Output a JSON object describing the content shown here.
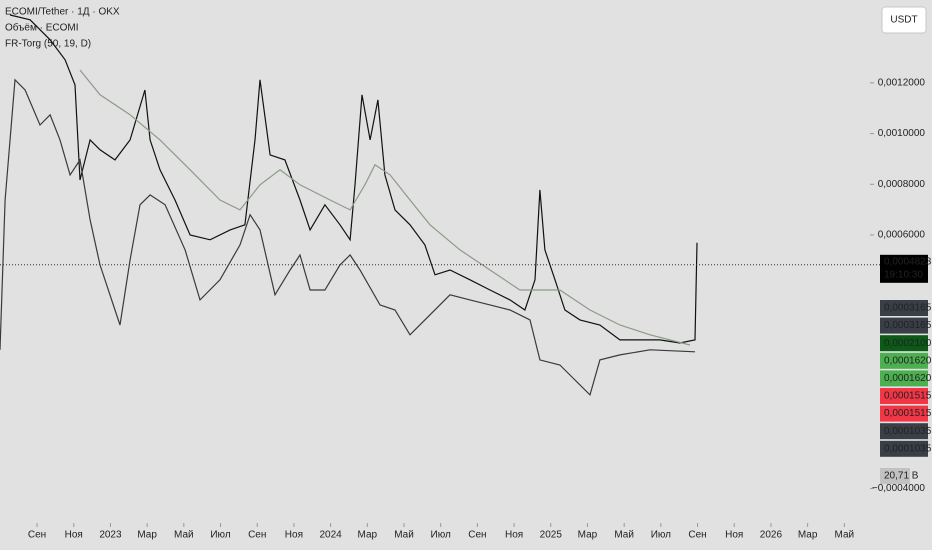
{
  "chart_data": {
    "type": "line",
    "legend": [
      "ECOMI/Tether · 1Д · OKX",
      "Объём · ECOMI",
      "FR-Torg (50, 19, D)"
    ],
    "currency_button": "USDT",
    "xlim": [
      -2.02,
      45.4
    ],
    "ylim": [
      -0.000485,
      0.001527
    ],
    "xticks": [
      {
        "value": 0,
        "label": "Сен"
      },
      {
        "value": 2,
        "label": "Ноя"
      },
      {
        "value": 4,
        "label": "2023"
      },
      {
        "value": 6,
        "label": "Мар"
      },
      {
        "value": 8,
        "label": "Май"
      },
      {
        "value": 10,
        "label": "Июл"
      },
      {
        "value": 12,
        "label": "Сен"
      },
      {
        "value": 14,
        "label": "Ноя"
      },
      {
        "value": 16,
        "label": "2024"
      },
      {
        "value": 18,
        "label": "Мар"
      },
      {
        "value": 20,
        "label": "Май"
      },
      {
        "value": 22,
        "label": "Июл"
      },
      {
        "value": 24,
        "label": "Сен"
      },
      {
        "value": 26,
        "label": "Ноя"
      },
      {
        "value": 28,
        "label": "2025"
      },
      {
        "value": 30,
        "label": "Мар"
      },
      {
        "value": 32,
        "label": "Май"
      },
      {
        "value": 34,
        "label": "Июл"
      },
      {
        "value": 36,
        "label": "Сен"
      },
      {
        "value": 38,
        "label": "Ноя"
      },
      {
        "value": 40,
        "label": "2026"
      },
      {
        "value": 42,
        "label": "Мар"
      },
      {
        "value": 44,
        "label": "Май"
      }
    ],
    "yticks": [
      {
        "value": 0.0012,
        "label": "0,0012000"
      },
      {
        "value": 0.001,
        "label": "0,0010000"
      },
      {
        "value": 0.0008,
        "label": "0,0008000"
      },
      {
        "value": 0.0006,
        "label": "0,0006000"
      },
      {
        "value": -0.0004,
        "label": "−0,0004000"
      }
    ],
    "current_price": {
      "value": 0.0004823,
      "label": "0,0004823",
      "time": "19:10:30"
    },
    "badges": [
      {
        "label": "0,0003165",
        "color": "#3a3e47"
      },
      {
        "label": "0,0003165",
        "color": "#3a3e47"
      },
      {
        "label": "0,0002100",
        "color": "#0b5a17"
      },
      {
        "label": "0,0001620",
        "color": "#4caf50"
      },
      {
        "label": "0,0001620",
        "color": "#4caf50"
      },
      {
        "label": "0,0001515",
        "color": "#f23645"
      },
      {
        "label": "0,0001515",
        "color": "#f23645"
      },
      {
        "label": "0,0001035",
        "color": "#3a3e47"
      },
      {
        "label": "0,0001035",
        "color": "#3a3e47"
      }
    ],
    "volume_badge": "20,71 B",
    "series": [
      {
        "color": "#111111",
        "x": [
          -1.47,
          -0.38,
          0.71,
          1.53,
          2.07,
          2.34,
          2.89,
          3.43,
          4.25,
          5.07,
          5.88,
          6.16,
          6.7,
          7.52,
          8.34,
          9.43,
          10.52,
          11.33,
          11.88,
          12.15,
          12.7,
          13.51,
          14.33,
          14.88,
          15.69,
          16.51,
          17.06,
          17.33,
          17.71,
          18.15,
          18.58,
          18.96,
          19.51,
          20.33,
          21.14,
          21.69,
          22.51,
          23.6,
          24.69,
          25.78,
          26.59,
          27.14,
          27.41,
          27.68,
          28.23,
          28.77,
          29.59,
          30.68,
          31.77,
          32.86,
          33.95,
          35.04,
          35.86,
          35.97
        ],
        "values": [
          0.001468,
          0.001449,
          0.00137,
          0.001291,
          0.001192,
          0.000817,
          0.000975,
          0.000936,
          0.000896,
          0.000975,
          0.001172,
          0.000975,
          0.000857,
          0.000738,
          0.0006,
          0.000581,
          0.00062,
          0.00064,
          0.000975,
          0.001212,
          0.000916,
          0.000896,
          0.000738,
          0.00062,
          0.000719,
          0.00064,
          0.000581,
          0.000798,
          0.001153,
          0.000975,
          0.001133,
          0.000837,
          0.000699,
          0.00064,
          0.000561,
          0.000443,
          0.000462,
          0.000423,
          0.000383,
          0.000344,
          0.000304,
          0.000423,
          0.000778,
          0.000541,
          0.000423,
          0.000304,
          0.000265,
          0.000245,
          0.000186,
          0.000186,
          0.000186,
          0.000174,
          0.000186,
          0.000569
        ]
      },
      {
        "color": "#8c9b88",
        "x": [
          2.34,
          3.43,
          5.07,
          6.7,
          8.34,
          9.97,
          11.06,
          12.15,
          13.24,
          14.33,
          15.97,
          17.06,
          17.87,
          18.42,
          19.24,
          20.33,
          21.42,
          23.05,
          24.69,
          26.32,
          27.68,
          28.5,
          30.14,
          31.77,
          33.41,
          35.59
        ],
        "values": [
          0.001251,
          0.001153,
          0.001074,
          0.000975,
          0.000857,
          0.000738,
          0.000699,
          0.000798,
          0.000857,
          0.000798,
          0.000738,
          0.000699,
          0.000798,
          0.000877,
          0.000837,
          0.000738,
          0.00064,
          0.000541,
          0.000462,
          0.000383,
          0.000383,
          0.000383,
          0.000304,
          0.000245,
          0.000206,
          0.000166
        ]
      },
      {
        "color": "#3a3a3a",
        "x": [
          -2.02,
          -1.74,
          -1.2,
          -0.65,
          0.16,
          0.71,
          1.25,
          1.8,
          2.34,
          2.89,
          3.43,
          4.25,
          4.52,
          5.07,
          5.61,
          6.16,
          6.98,
          8.07,
          8.88,
          9.97,
          11.06,
          11.61,
          12.15,
          12.97,
          13.79,
          14.33,
          14.88,
          15.69,
          16.51,
          17.06,
          17.6,
          18.69,
          19.51,
          20.33,
          21.42,
          22.51,
          23.6,
          24.69,
          25.78,
          26.87,
          27.41,
          28.5,
          29.32,
          30.14,
          30.68,
          31.77,
          33.41,
          35.86
        ],
        "values": [
          0.000147,
          0.000738,
          0.001212,
          0.001172,
          0.001034,
          0.001074,
          0.000975,
          0.000837,
          0.000896,
          0.00066,
          0.000482,
          0.000304,
          0.000245,
          0.000502,
          0.000719,
          0.000758,
          0.000719,
          0.000541,
          0.000344,
          0.000423,
          0.000561,
          0.00068,
          0.00062,
          0.000364,
          0.000462,
          0.000521,
          0.000383,
          0.000383,
          0.000482,
          0.000521,
          0.000462,
          0.000324,
          0.000304,
          0.000206,
          0.000285,
          0.000364,
          0.000344,
          0.000324,
          0.000304,
          0.000265,
          0.000107,
          8.7e-05,
          2.8e-05,
          -3.1e-05,
          0.000107,
          0.000127,
          0.000147,
          0.000139
        ]
      }
    ]
  }
}
